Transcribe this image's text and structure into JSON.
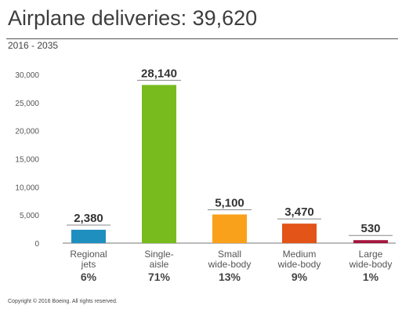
{
  "title": "Airplane deliveries: 39,620",
  "subtitle": "2016 - 2035",
  "copyright": "Copyright © 2016 Boeing. All rights reserved.",
  "chart_data": {
    "type": "bar",
    "title": "Airplane deliveries: 39,620",
    "subtitle": "2016 - 2035",
    "categories": [
      [
        "Regional",
        "jets"
      ],
      [
        "Single-",
        "aisle"
      ],
      [
        "Small",
        "wide-body"
      ],
      [
        "Medium",
        "wide-body"
      ],
      [
        "Large",
        "wide-body"
      ]
    ],
    "values": [
      2380,
      28140,
      5100,
      3470,
      530
    ],
    "value_labels": [
      "2,380",
      "28,140",
      "5,100",
      "3,470",
      "530"
    ],
    "percent_labels": [
      "6%",
      "71%",
      "13%",
      "9%",
      "1%"
    ],
    "colors": [
      "#1f8fc0",
      "#77bb1e",
      "#f9a11b",
      "#e25418",
      "#a3163d"
    ],
    "ylim": [
      0,
      30000
    ],
    "yticks": [
      0,
      5000,
      10000,
      15000,
      20000,
      25000,
      30000
    ],
    "ytick_labels": [
      "0",
      "5,000",
      "10,000",
      "15,000",
      "20,000",
      "25,000",
      "30,000"
    ],
    "grid": false
  }
}
